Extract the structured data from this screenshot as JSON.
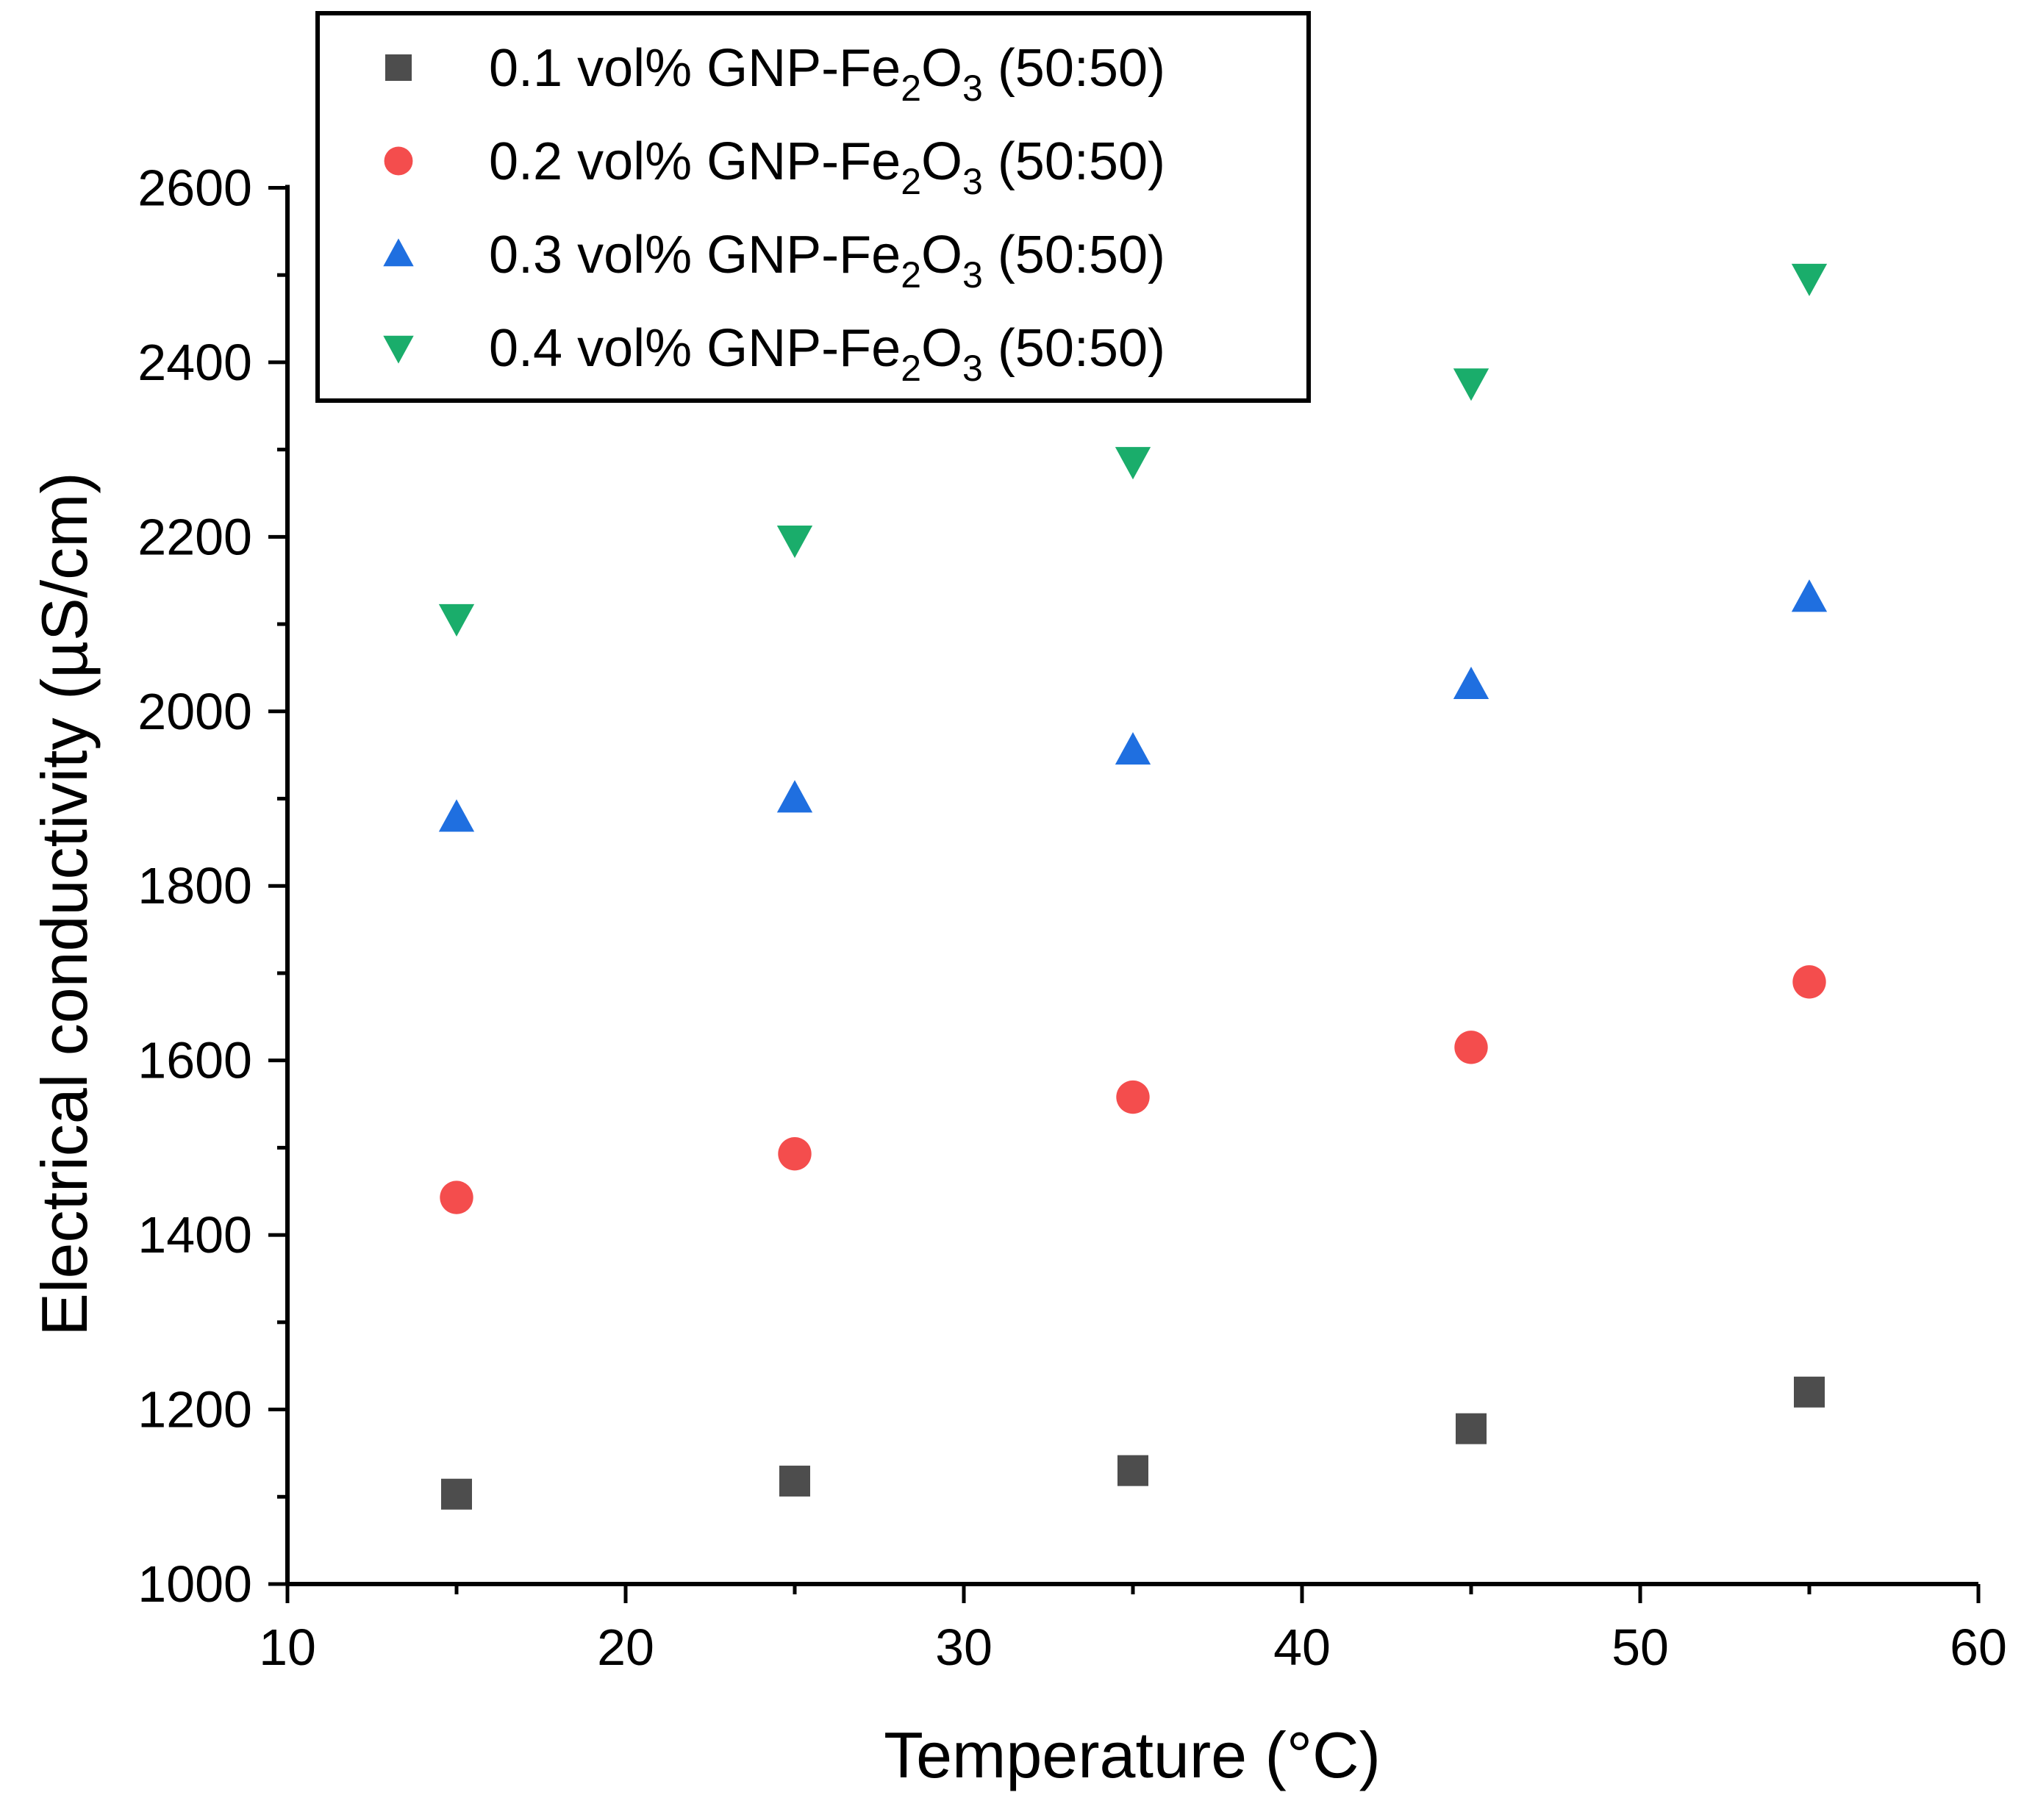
{
  "chart_data": {
    "type": "scatter",
    "xlabel": "Temperature (°C)",
    "ylabel": "Electrical conductivity (µS/cm)",
    "xlim": [
      10,
      60
    ],
    "ylim": [
      1000,
      2800
    ],
    "xticks": [
      10,
      20,
      30,
      40,
      50,
      60
    ],
    "yticks": [
      1000,
      1200,
      1400,
      1600,
      1800,
      2000,
      2200,
      2400,
      2600
    ],
    "grid": false,
    "legend_position": "top-left",
    "x": [
      15,
      25,
      35,
      45,
      55
    ],
    "series": [
      {
        "name": "0.1 vol% GNP-Fe2O3 (50:50)",
        "label_parts": [
          "0.1 vol% GNP-Fe",
          "2",
          "O",
          "3",
          " (50:50)"
        ],
        "marker": "square",
        "color": "#4d4d4d",
        "values": [
          1103,
          1118,
          1130,
          1178,
          1220
        ]
      },
      {
        "name": "0.2 vol% GNP-Fe2O3 (50:50)",
        "label_parts": [
          "0.2 vol% GNP-Fe",
          "2",
          "O",
          "3",
          " (50:50)"
        ],
        "marker": "circle",
        "color": "#f44d4d",
        "values": [
          1443,
          1493,
          1558,
          1615,
          1690
        ]
      },
      {
        "name": "0.3 vol% GNP-Fe2O3 (50:50)",
        "label_parts": [
          "0.3 vol% GNP-Fe",
          "2",
          "O",
          "3",
          " (50:50)"
        ],
        "marker": "triangle-up",
        "color": "#1f6fe0",
        "values": [
          1878,
          1900,
          1955,
          2030,
          2130
        ]
      },
      {
        "name": "0.4 vol% GNP-Fe2O3 (50:50)",
        "label_parts": [
          "0.4 vol% GNP-Fe",
          "2",
          "O",
          "3",
          " (50:50)"
        ],
        "marker": "triangle-down",
        "color": "#1aad6b",
        "values": [
          2107,
          2197,
          2287,
          2377,
          2497
        ]
      }
    ]
  }
}
